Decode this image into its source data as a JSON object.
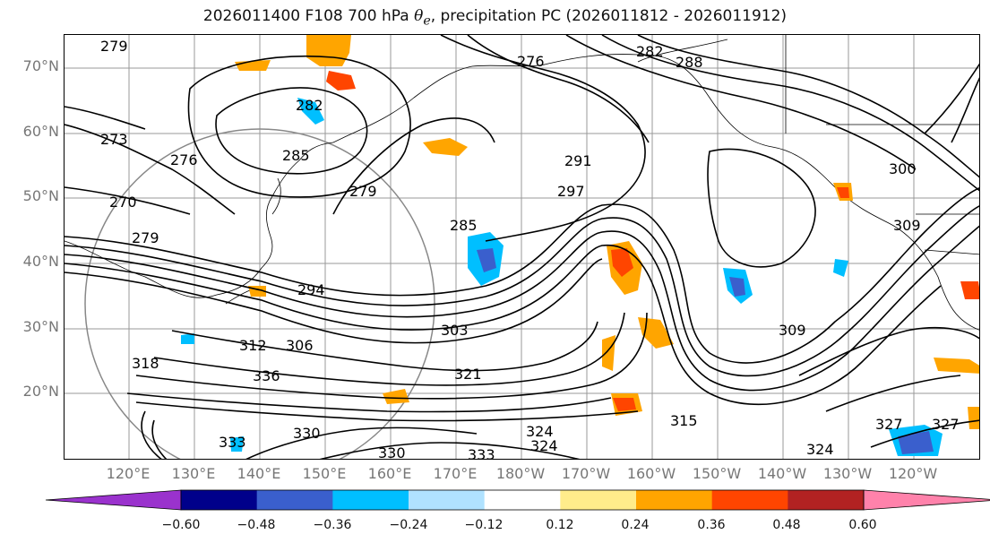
{
  "title": {
    "main": "2026011400 F108 700 hPa ",
    "theta": "θ",
    "theta_sub": "e",
    "rest": ", precipitation PC (2026011812 - 2026011912)"
  },
  "lat_labels": [
    "70°N",
    "60°N",
    "50°N",
    "40°N",
    "30°N",
    "20°N"
  ],
  "lon_labels": [
    "120°E",
    "130°E",
    "140°E",
    "150°E",
    "160°E",
    "170°E",
    "180°W",
    "170°W",
    "160°W",
    "150°W",
    "140°W",
    "130°W",
    "120°W"
  ],
  "contour_labels": [
    "279",
    "273",
    "276",
    "270",
    "279",
    "282",
    "285",
    "279",
    "276",
    "282",
    "288",
    "291",
    "297",
    "285",
    "294",
    "303",
    "312",
    "306",
    "318",
    "336",
    "321",
    "309",
    "300",
    "309",
    "330",
    "333",
    "330",
    "333",
    "324",
    "324",
    "315",
    "324",
    "327",
    "327"
  ],
  "colorbar": {
    "ticks": [
      "−0.60",
      "−0.48",
      "−0.36",
      "−0.24",
      "−0.12",
      "0.12",
      "0.24",
      "0.36",
      "0.48",
      "0.60"
    ],
    "colors": [
      "#9a32cd",
      "#00008b",
      "#3a5fcd",
      "#00bfff",
      "#b0e2ff",
      "#ffffff",
      "#ffec8b",
      "#ffa500",
      "#ff4500",
      "#b22222",
      "#ff82ab"
    ]
  }
}
